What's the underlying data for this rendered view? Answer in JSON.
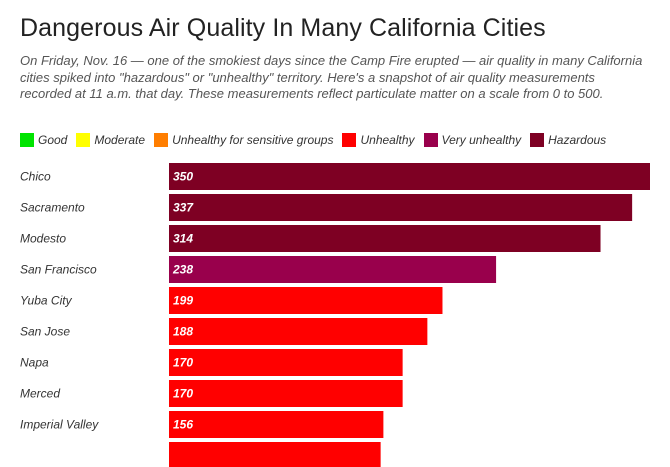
{
  "title": "Dangerous Air Quality In Many California Cities",
  "subtitle": "On Friday, Nov. 16 — one of the smokiest days since the Camp Fire erupted — air quality in many California cities spiked into \"hazardous\" or \"unhealthy\" territory. Here's a snapshot of air quality measurements recorded at 11 a.m. that day. These measurements reflect particulate matter on a scale from 0 to 500.",
  "legend": [
    {
      "label": "Good",
      "color": "#00e400"
    },
    {
      "label": "Moderate",
      "color": "#ffff00"
    },
    {
      "label": "Unhealthy for sensitive groups",
      "color": "#ff7e00"
    },
    {
      "label": "Unhealthy",
      "color": "#ff0000"
    },
    {
      "label": "Very unhealthy",
      "color": "#99004c"
    },
    {
      "label": "Hazardous",
      "color": "#7e0023"
    }
  ],
  "chart_data": {
    "type": "bar",
    "orientation": "horizontal",
    "categories": [
      "Chico",
      "Sacramento",
      "Modesto",
      "San Francisco",
      "Yuba City",
      "San Jose",
      "Napa",
      "Merced",
      "Imperial Valley",
      ""
    ],
    "values": [
      350,
      337,
      314,
      238,
      199,
      188,
      170,
      170,
      156,
      154
    ],
    "value_labels": [
      "350",
      "337",
      "314",
      "238",
      "199",
      "188",
      "170",
      "170",
      "156",
      ""
    ],
    "bar_colors": [
      "#7e0023",
      "#7e0023",
      "#7e0023",
      "#99004c",
      "#ff0000",
      "#ff0000",
      "#ff0000",
      "#ff0000",
      "#ff0000",
      "#ff0000"
    ],
    "xlim": [
      0,
      350
    ],
    "grid": false,
    "legend_position": "top-left"
  }
}
